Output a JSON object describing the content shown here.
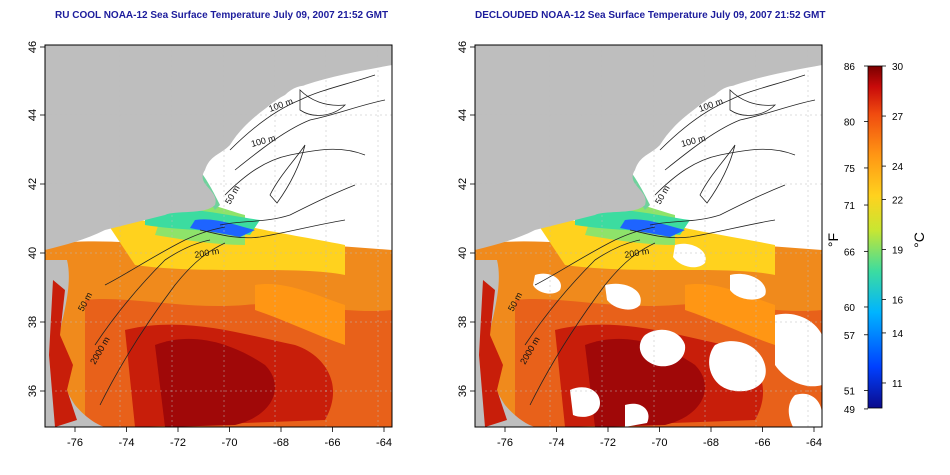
{
  "panels": [
    {
      "title": "RU COOL NOAA-12 Sea Surface Temperature July 09, 2007 21:52 GMT",
      "cloud_masked": false
    },
    {
      "title": "DECLOUDED NOAA-12 Sea Surface Temperature July 09, 2007 21:52 GMT",
      "cloud_masked": true
    }
  ],
  "map": {
    "lon_ticks": [
      "-76",
      "-74",
      "-72",
      "-70",
      "-68",
      "-66",
      "-64"
    ],
    "lat_ticks": [
      "46",
      "44",
      "42",
      "40",
      "38",
      "36"
    ],
    "contour_labels": [
      "100 m",
      "100 m",
      "50 m",
      "200 m",
      "50 m",
      "2000 m"
    ],
    "colors": {
      "land": "#bebebe",
      "contour": "#222222",
      "no_data": "#ffffff"
    }
  },
  "colorbar": {
    "unit_f": "°F",
    "unit_c": "°C",
    "f_ticks": [
      "86",
      "80",
      "75",
      "71",
      "66",
      "60",
      "57",
      "51",
      "49"
    ],
    "c_ticks": [
      "30",
      "27",
      "24",
      "22",
      "19",
      "16",
      "14",
      "11"
    ],
    "range_c": [
      9.5,
      30
    ],
    "stops": [
      "#0b0b8c",
      "#0040ff",
      "#00b4ff",
      "#3cdca0",
      "#c8e632",
      "#ffd21e",
      "#ff9614",
      "#f04b0f",
      "#c80a0a",
      "#7a0000"
    ]
  }
}
